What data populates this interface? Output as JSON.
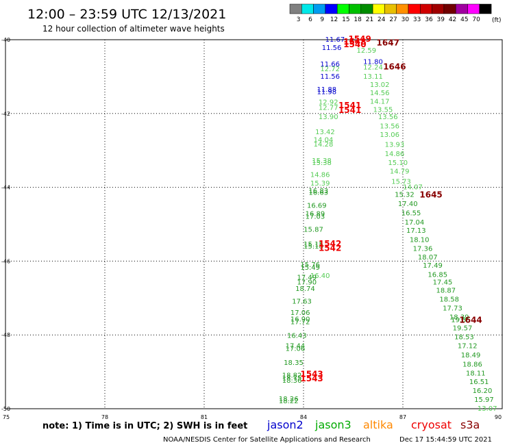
{
  "header": {
    "title": "12:00 – 23:59 UTC 12/13/2021",
    "subtitle": "12 hour collection of altimeter wave heights"
  },
  "scale": {
    "unit": "(ft)",
    "bins": [
      {
        "label": "3",
        "color": "#808080"
      },
      {
        "label": "6",
        "color": "#00e8e8"
      },
      {
        "label": "9",
        "color": "#009cf0"
      },
      {
        "label": "12",
        "color": "#0000ff"
      },
      {
        "label": "15",
        "color": "#00ff00"
      },
      {
        "label": "18",
        "color": "#00c000"
      },
      {
        "label": "21",
        "color": "#008c00"
      },
      {
        "label": "24",
        "color": "#ffff00"
      },
      {
        "label": "27",
        "color": "#e8c000"
      },
      {
        "label": "30",
        "color": "#ff9000"
      },
      {
        "label": "33",
        "color": "#ff0000"
      },
      {
        "label": "36",
        "color": "#d00000"
      },
      {
        "label": "39",
        "color": "#a00000"
      },
      {
        "label": "42",
        "color": "#700000"
      },
      {
        "label": "45",
        "color": "#a000a0"
      },
      {
        "label": "70",
        "color": "#ff00ff"
      },
      {
        "label": "",
        "color": "#000000"
      }
    ]
  },
  "footer": {
    "note": "note:  1) Time is in UTC;  2) SWH is in feet",
    "credit": "NOAA/NESDIS Center for Satellite Applications and Research",
    "timestamp": "Dec 17 15:44:59 UTC 2021",
    "satellites": [
      {
        "name": "jason2",
        "color": "#0000cc"
      },
      {
        "name": "jason3",
        "color": "#00aa00"
      },
      {
        "name": "altika",
        "color": "#ff8800"
      },
      {
        "name": "cryosat",
        "color": "#ee0000"
      },
      {
        "name": "s3a",
        "color": "#880000"
      }
    ]
  },
  "chart_data": {
    "type": "scatter",
    "title": "",
    "xlabel": "",
    "ylabel": "",
    "xlim": [
      75,
      90
    ],
    "ylim": [
      -50,
      -40
    ],
    "xticks": [
      75,
      78,
      81,
      84,
      87,
      90
    ],
    "yticks": [
      -40,
      -42,
      -44,
      -46,
      -48,
      -50
    ],
    "grid": true,
    "colors": {
      "jason2": "#0000cc",
      "j3dark": "#229922",
      "j3light": "#55cc55",
      "cryosat": "#ee0000",
      "s3a": "#880000"
    },
    "series": [
      {
        "name": "jason2",
        "color": "jason2",
        "points": [
          {
            "x": 84.95,
            "y": -40.0,
            "v": "11.67"
          },
          {
            "x": 84.85,
            "y": -40.22,
            "v": "11.56"
          },
          {
            "x": 84.8,
            "y": -40.67,
            "v": "11.66"
          },
          {
            "x": 84.8,
            "y": -41.0,
            "v": "11.56"
          },
          {
            "x": 84.7,
            "y": -41.35,
            "v": "11.88"
          },
          {
            "x": 84.7,
            "y": -41.42,
            "v": "11.98"
          },
          {
            "x": 86.1,
            "y": -40.6,
            "v": "11.80"
          }
        ]
      },
      {
        "name": "jason3",
        "color": "j3light",
        "points": [
          {
            "x": 85.9,
            "y": -40.3,
            "v": "12.59"
          },
          {
            "x": 86.1,
            "y": -40.75,
            "v": "12.24"
          },
          {
            "x": 84.8,
            "y": -40.8,
            "v": "12.72"
          },
          {
            "x": 86.1,
            "y": -41.0,
            "v": "13.11"
          },
          {
            "x": 86.3,
            "y": -41.22,
            "v": "13.02"
          },
          {
            "x": 86.3,
            "y": -41.45,
            "v": "14.56"
          },
          {
            "x": 86.3,
            "y": -41.68,
            "v": "14.17"
          },
          {
            "x": 84.75,
            "y": -41.7,
            "v": "12.92"
          },
          {
            "x": 84.75,
            "y": -41.85,
            "v": "12.77"
          },
          {
            "x": 86.4,
            "y": -41.9,
            "v": "13.55"
          },
          {
            "x": 84.75,
            "y": -42.1,
            "v": "13.90"
          },
          {
            "x": 86.55,
            "y": -42.1,
            "v": "13.56"
          },
          {
            "x": 86.6,
            "y": -42.35,
            "v": "13.56"
          },
          {
            "x": 84.65,
            "y": -42.5,
            "v": "13.42"
          },
          {
            "x": 86.6,
            "y": -42.58,
            "v": "13.06"
          },
          {
            "x": 84.6,
            "y": -42.72,
            "v": "14.04"
          },
          {
            "x": 84.6,
            "y": -42.84,
            "v": "14.28"
          },
          {
            "x": 86.75,
            "y": -42.85,
            "v": "13.93"
          },
          {
            "x": 86.75,
            "y": -43.1,
            "v": "14.86"
          },
          {
            "x": 84.55,
            "y": -43.28,
            "v": "15.38"
          },
          {
            "x": 84.55,
            "y": -43.34,
            "v": "15.38"
          },
          {
            "x": 86.85,
            "y": -43.34,
            "v": "15.10"
          },
          {
            "x": 86.9,
            "y": -43.57,
            "v": "14.79"
          },
          {
            "x": 84.5,
            "y": -43.66,
            "v": "14.86"
          },
          {
            "x": 84.5,
            "y": -43.9,
            "v": "15.39"
          },
          {
            "x": 86.95,
            "y": -43.85,
            "v": "15.73"
          },
          {
            "x": 87.3,
            "y": -44.0,
            "v": "14.07"
          },
          {
            "x": 84.5,
            "y": -46.4,
            "v": "16.40"
          }
        ]
      },
      {
        "name": "jason3",
        "color": "j3dark",
        "points": [
          {
            "x": 84.45,
            "y": -44.1,
            "v": "16.83"
          },
          {
            "x": 84.45,
            "y": -44.15,
            "v": "16.63"
          },
          {
            "x": 87.05,
            "y": -44.2,
            "v": "15.32"
          },
          {
            "x": 87.15,
            "y": -44.45,
            "v": "17.40"
          },
          {
            "x": 84.4,
            "y": -44.5,
            "v": "16.69"
          },
          {
            "x": 87.25,
            "y": -44.7,
            "v": "16.55"
          },
          {
            "x": 84.35,
            "y": -44.72,
            "v": "16.89"
          },
          {
            "x": 84.35,
            "y": -44.8,
            "v": "17.03"
          },
          {
            "x": 87.35,
            "y": -44.95,
            "v": "17.04"
          },
          {
            "x": 84.3,
            "y": -45.15,
            "v": "15.87"
          },
          {
            "x": 87.4,
            "y": -45.18,
            "v": "17.13"
          },
          {
            "x": 87.5,
            "y": -45.43,
            "v": "18.10"
          },
          {
            "x": 84.3,
            "y": -45.55,
            "v": "15.15"
          },
          {
            "x": 84.3,
            "y": -45.6,
            "v": "15.18"
          },
          {
            "x": 87.6,
            "y": -45.67,
            "v": "17.36"
          },
          {
            "x": 87.75,
            "y": -45.9,
            "v": "18.07"
          },
          {
            "x": 84.2,
            "y": -46.1,
            "v": "15.76"
          },
          {
            "x": 84.2,
            "y": -46.18,
            "v": "15.49"
          },
          {
            "x": 87.9,
            "y": -46.12,
            "v": "17.49"
          },
          {
            "x": 88.05,
            "y": -46.37,
            "v": "16.85"
          },
          {
            "x": 84.1,
            "y": -46.45,
            "v": "17.49"
          },
          {
            "x": 84.1,
            "y": -46.58,
            "v": "17.90"
          },
          {
            "x": 88.2,
            "y": -46.58,
            "v": "17.45"
          },
          {
            "x": 84.05,
            "y": -46.75,
            "v": "18.74"
          },
          {
            "x": 88.3,
            "y": -46.8,
            "v": "18.87"
          },
          {
            "x": 88.4,
            "y": -47.04,
            "v": "18.58"
          },
          {
            "x": 83.95,
            "y": -47.1,
            "v": "17.63"
          },
          {
            "x": 88.5,
            "y": -47.28,
            "v": "17.73"
          },
          {
            "x": 83.9,
            "y": -47.4,
            "v": "17.06"
          },
          {
            "x": 88.7,
            "y": -47.52,
            "v": "18.39"
          },
          {
            "x": 83.9,
            "y": -47.58,
            "v": "16.90"
          },
          {
            "x": 83.9,
            "y": -47.65,
            "v": "17.72"
          },
          {
            "x": 88.75,
            "y": -47.6,
            "v": "19.35"
          },
          {
            "x": 88.8,
            "y": -47.82,
            "v": "19.57"
          },
          {
            "x": 88.85,
            "y": -48.06,
            "v": "18.53"
          },
          {
            "x": 83.8,
            "y": -48.02,
            "v": "16.43"
          },
          {
            "x": 88.95,
            "y": -48.3,
            "v": "17.12"
          },
          {
            "x": 83.75,
            "y": -48.3,
            "v": "17.44"
          },
          {
            "x": 83.75,
            "y": -48.38,
            "v": "17.06"
          },
          {
            "x": 89.05,
            "y": -48.55,
            "v": "18.49"
          },
          {
            "x": 83.7,
            "y": -48.76,
            "v": "18.35"
          },
          {
            "x": 89.1,
            "y": -48.8,
            "v": "18.86"
          },
          {
            "x": 89.2,
            "y": -49.04,
            "v": "18.11"
          },
          {
            "x": 83.65,
            "y": -49.1,
            "v": "18.82"
          },
          {
            "x": 83.65,
            "y": -49.17,
            "v": "18.75"
          },
          {
            "x": 83.65,
            "y": -49.24,
            "v": "18.36"
          },
          {
            "x": 89.3,
            "y": -49.28,
            "v": "16.51"
          },
          {
            "x": 89.4,
            "y": -49.52,
            "v": "16.20"
          },
          {
            "x": 83.55,
            "y": -49.74,
            "v": "18.26"
          },
          {
            "x": 83.55,
            "y": -49.8,
            "v": "18.22"
          },
          {
            "x": 89.45,
            "y": -49.76,
            "v": "15.97"
          }
        ]
      },
      {
        "name": "s3a",
        "color": "j3light",
        "points": [
          {
            "x": 89.55,
            "y": -50.0,
            "v": "13.07"
          }
        ]
      },
      {
        "name": "cryosat",
        "color": "cryosat",
        "points": [
          {
            "x": 85.7,
            "y": -40.0,
            "v": "1549"
          },
          {
            "x": 85.55,
            "y": -40.07,
            "v": "1548"
          },
          {
            "x": 85.55,
            "y": -40.15,
            "v": "1540"
          },
          {
            "x": 85.4,
            "y": -41.8,
            "v": "1541"
          },
          {
            "x": 85.4,
            "y": -41.93,
            "v": "1541"
          },
          {
            "x": 84.8,
            "y": -45.55,
            "v": "1542"
          },
          {
            "x": 84.8,
            "y": -45.67,
            "v": "1542"
          },
          {
            "x": 84.25,
            "y": -49.08,
            "v": "1543"
          },
          {
            "x": 84.25,
            "y": -49.2,
            "v": "1543"
          }
        ]
      },
      {
        "name": "s3a",
        "color": "s3a",
        "points": [
          {
            "x": 86.55,
            "y": -40.1,
            "v": "1647"
          },
          {
            "x": 86.75,
            "y": -40.75,
            "v": "1646"
          },
          {
            "x": 87.85,
            "y": -44.22,
            "v": "1645"
          },
          {
            "x": 89.05,
            "y": -47.62,
            "v": "1644"
          }
        ]
      }
    ]
  }
}
